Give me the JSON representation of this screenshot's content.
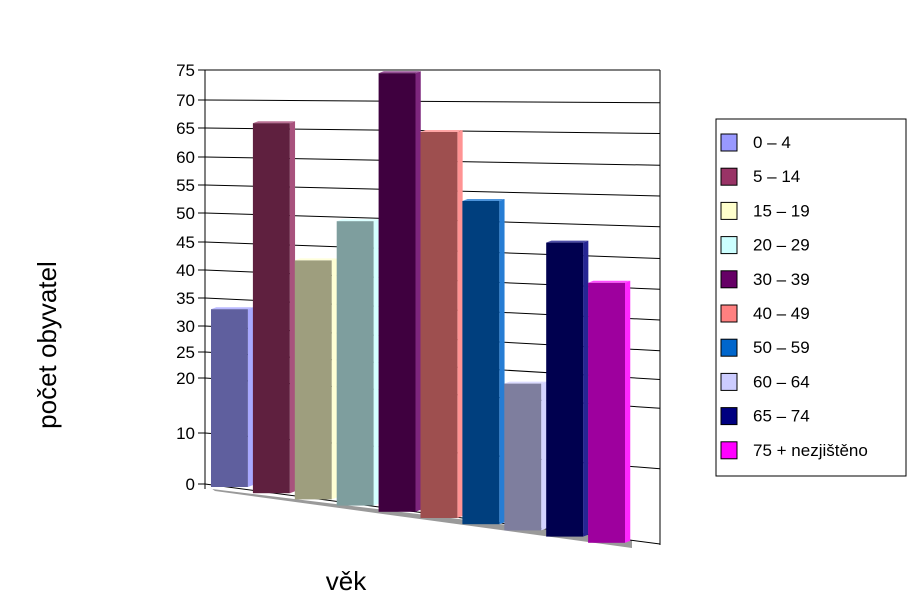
{
  "chart_data": {
    "type": "bar",
    "title": "",
    "xlabel": "věk",
    "ylabel": "počet obyvatel",
    "yticks": [
      "0",
      "10",
      "20",
      "25",
      "30",
      "35",
      "40",
      "45",
      "50",
      "55",
      "60",
      "65",
      "70",
      "75"
    ],
    "ylim": [
      0,
      75
    ],
    "legend_position": "right",
    "series": [
      {
        "name": "0 – 4",
        "value": 33,
        "color": "#9999ff"
      },
      {
        "name": "5 – 14",
        "value": 66,
        "color": "#993366"
      },
      {
        "name": "15 – 19",
        "value": 42,
        "color": "#ffffcc"
      },
      {
        "name": "20 – 29",
        "value": 49,
        "color": "#ccffff"
      },
      {
        "name": "30 – 39",
        "value": 75,
        "color": "#660066"
      },
      {
        "name": "40 – 49",
        "value": 65,
        "color": "#ff8080"
      },
      {
        "name": "50 – 59",
        "value": 53,
        "color": "#0066cc"
      },
      {
        "name": "60 – 64",
        "value": 20,
        "color": "#ccccff"
      },
      {
        "name": "65 – 74",
        "value": 46,
        "color": "#000080"
      },
      {
        "name": "75 + nezjištěno",
        "value": 39,
        "color": "#ff00ff"
      }
    ]
  }
}
